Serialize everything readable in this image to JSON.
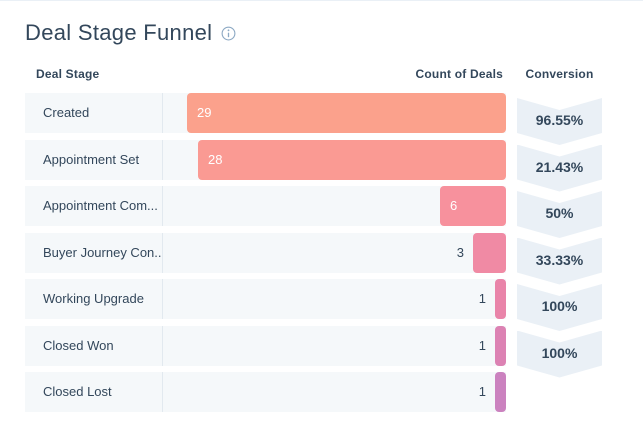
{
  "title": "Deal Stage Funnel",
  "columns": {
    "deal_stage": "Deal Stage",
    "count_of_deals": "Count of Deals",
    "conversion": "Conversion"
  },
  "colors": {
    "text": "#33475b",
    "row_background": "#f5f8fa",
    "badge_background": "#eaf0f6",
    "bar_label_inside": "#ffffff",
    "info_icon": "#8da9c4"
  },
  "chart_data": {
    "type": "bar",
    "subtype": "horizontal-funnel",
    "title": "Deal Stage Funnel",
    "categories": [
      "Created",
      "Appointment Set",
      "Appointment Com...",
      "Buyer Journey Con...",
      "Working Upgrade",
      "Closed Won",
      "Closed Lost"
    ],
    "values": [
      29,
      28,
      6,
      3,
      1,
      1,
      1
    ],
    "conversions": [
      "96.55%",
      "21.43%",
      "50%",
      "33.33%",
      "100%",
      "100%",
      null
    ],
    "bar_colors": [
      "#fba18c",
      "#fa9a93",
      "#f7919d",
      "#f08aa4",
      "#e984a9",
      "#dc82b3",
      "#cb82bf"
    ],
    "xlabel": "Count of Deals",
    "ylabel": "Deal Stage",
    "max_value": 29,
    "bars_right_aligned": true,
    "legend": "none",
    "grid": "off"
  }
}
